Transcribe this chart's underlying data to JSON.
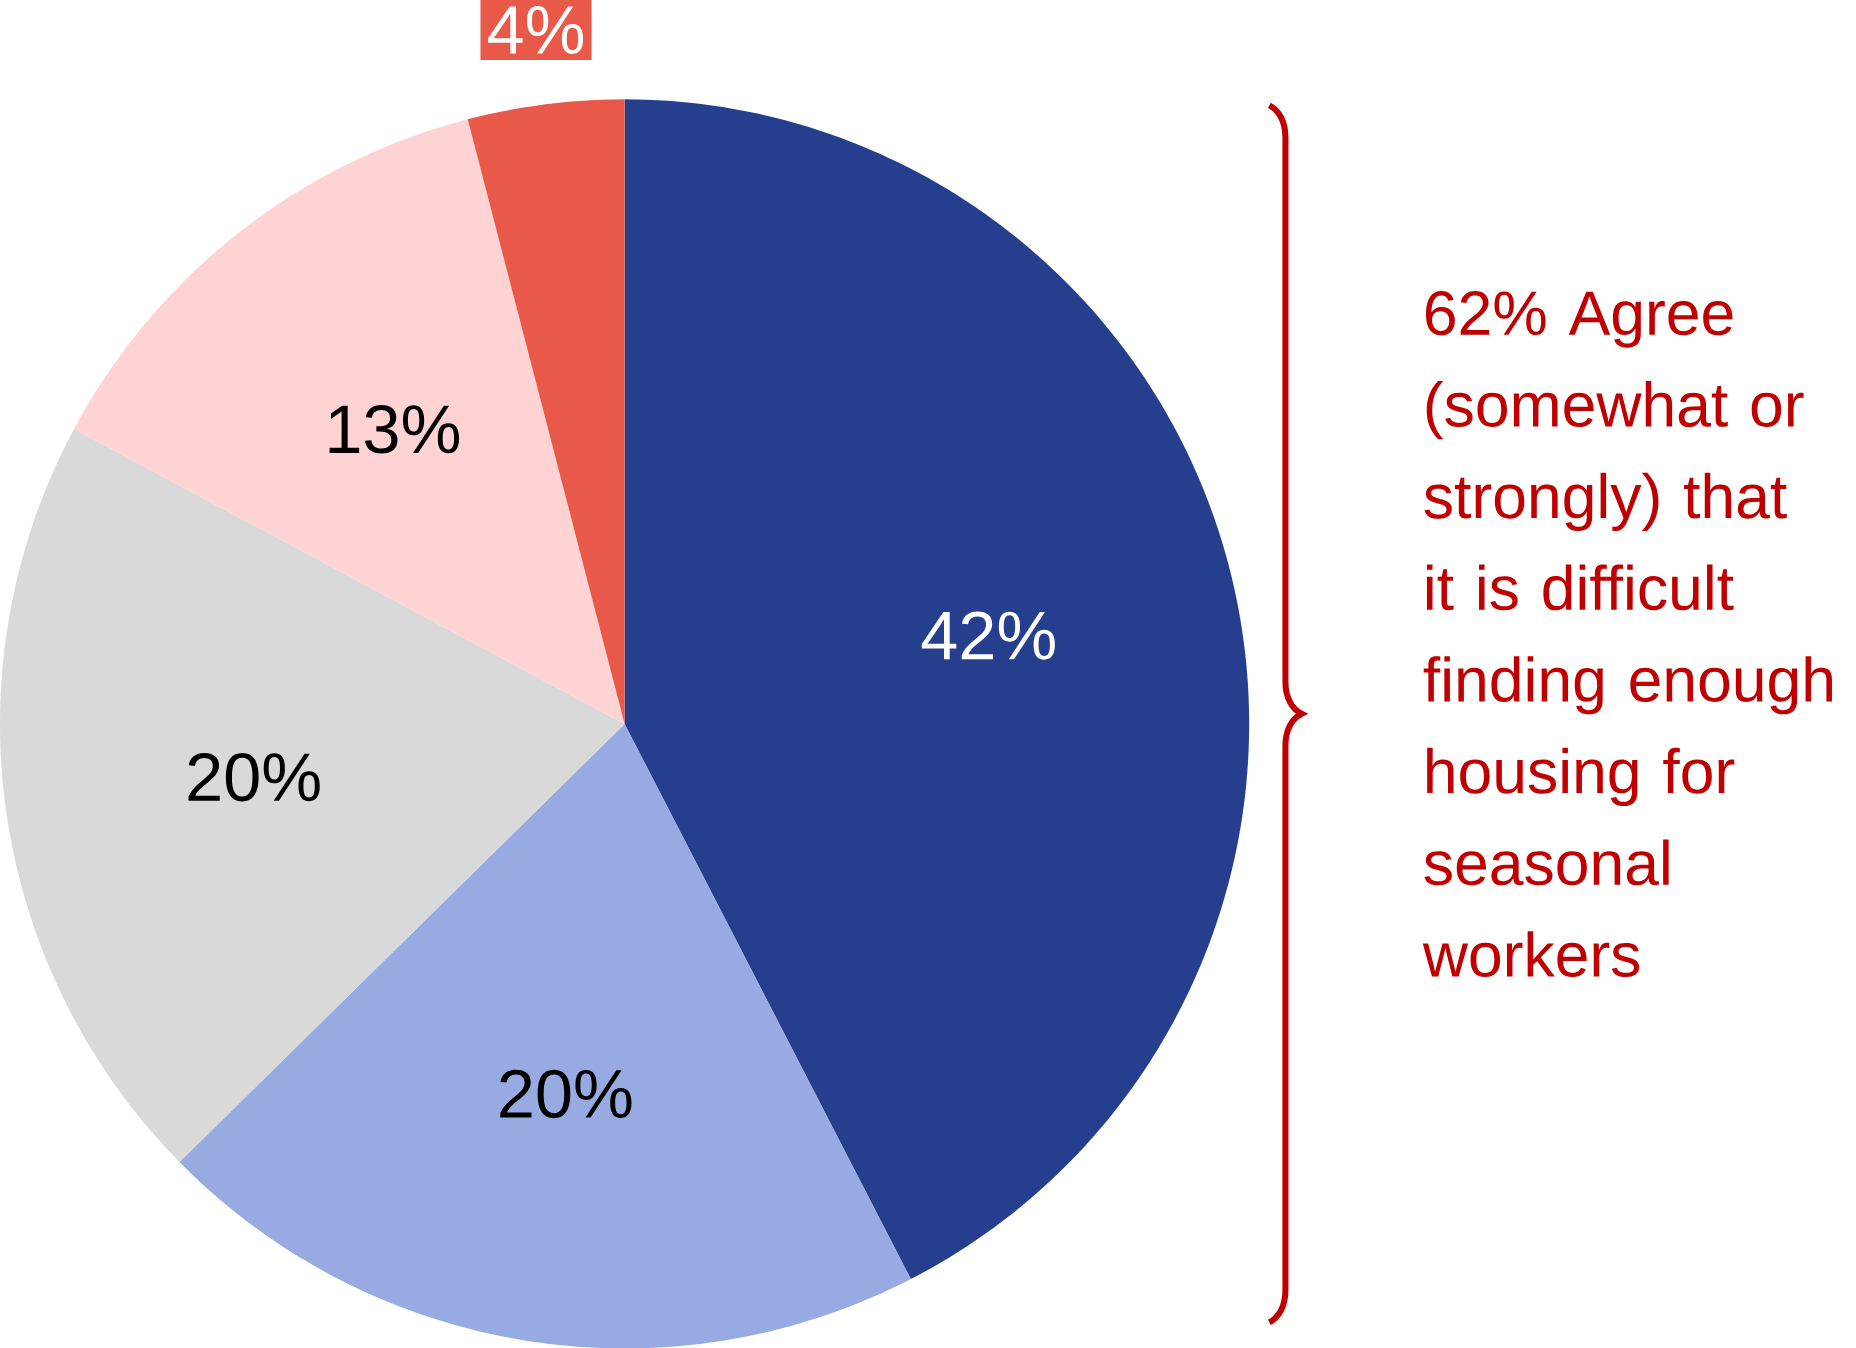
{
  "chart_data": {
    "type": "pie",
    "categories": [
      null,
      null,
      null,
      null,
      null
    ],
    "values": [
      42,
      20,
      20,
      13,
      4
    ],
    "colors": [
      "#253f8e",
      "#98aae2",
      "#d9d9d9",
      "#ffd3d3",
      "#e8594a"
    ],
    "value_labels": [
      "42%",
      "20%",
      "20%",
      "13%",
      "4%"
    ],
    "annotations": [
      "62% Agree (somewhat or strongly) that it is difficult finding enough housing for seasonal workers"
    ]
  }
}
